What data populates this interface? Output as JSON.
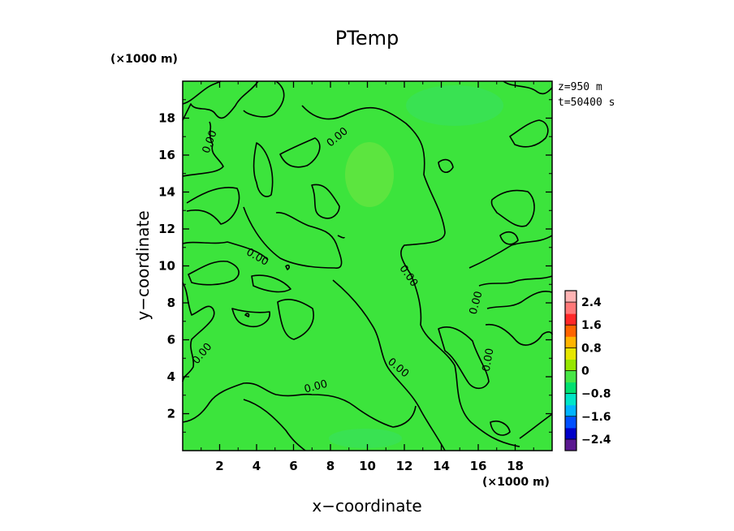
{
  "chart_data": {
    "type": "heatmap",
    "title": "PTemp",
    "xlabel": "x−coordinate",
    "ylabel": "y−coordinate",
    "x_unit": "(×1000 m)",
    "y_unit": "(×1000 m)",
    "xlim": [
      0,
      20
    ],
    "ylim": [
      0,
      20
    ],
    "x_ticks": [
      2,
      4,
      6,
      8,
      10,
      12,
      14,
      16,
      18
    ],
    "y_ticks": [
      2,
      4,
      6,
      8,
      10,
      12,
      14,
      16,
      18
    ],
    "x_tick_labels": [
      "2",
      "4",
      "6",
      "8",
      "10",
      "12",
      "14",
      "16",
      "18"
    ],
    "y_tick_labels": [
      "2",
      "4",
      "6",
      "8",
      "10",
      "12",
      "14",
      "16",
      "18"
    ],
    "annotations": [
      "z=950 m",
      "t=50400 s"
    ],
    "contour_level": 0.0,
    "contour_label": "0.00",
    "colorbar": {
      "ticks": [
        2.4,
        1.6,
        0.8,
        0,
        -0.8,
        -1.6,
        -2.4
      ],
      "tick_labels": [
        "2.4",
        "1.6",
        "0.8",
        "0",
        "−0.8",
        "−1.6",
        "−2.4"
      ],
      "range": [
        -2.8,
        2.8
      ],
      "colors": [
        "#5a1890",
        "#0000c8",
        "#0050ff",
        "#00b4ff",
        "#00e6c8",
        "#00e070",
        "#46e646",
        "#96e600",
        "#e6e600",
        "#ffb400",
        "#ff6400",
        "#ff2828",
        "#ff7878",
        "#ffb4b4"
      ]
    },
    "field_color": "#3ce43c",
    "grid": false
  }
}
